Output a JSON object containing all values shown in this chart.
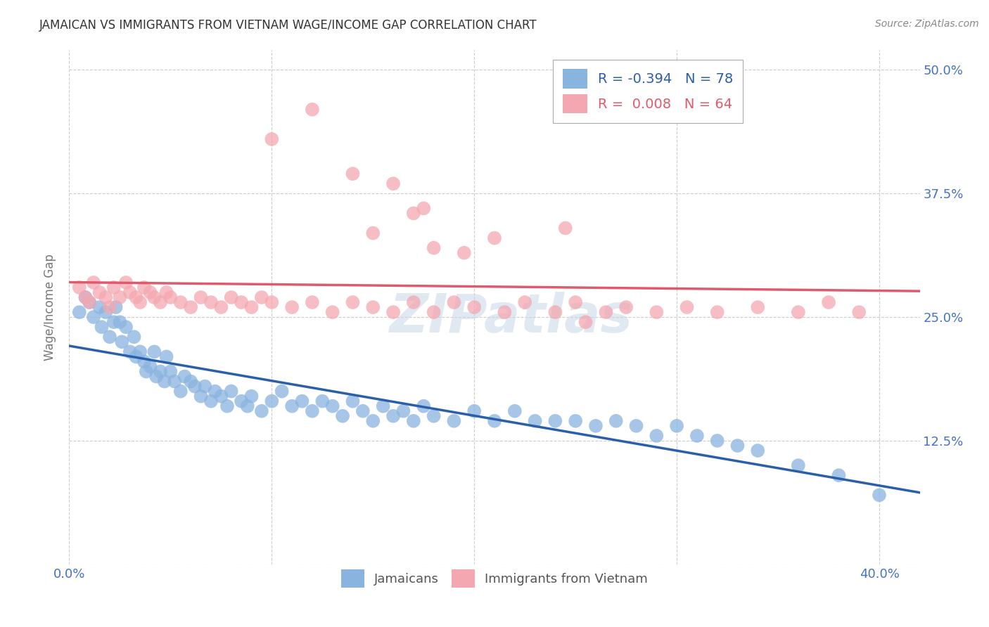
{
  "title": "JAMAICAN VS IMMIGRANTS FROM VIETNAM WAGE/INCOME GAP CORRELATION CHART",
  "source": "Source: ZipAtlas.com",
  "ylabel": "Wage/Income Gap",
  "legend_label1": "Jamaicans",
  "legend_label2": "Immigrants from Vietnam",
  "r1": -0.394,
  "n1": 78,
  "r2": 0.008,
  "n2": 64,
  "color_blue": "#8ab4e0",
  "color_pink": "#f4a7b0",
  "line_blue": "#2a5fac",
  "line_pink": "#e05a6e",
  "background": "#ffffff",
  "grid_color": "#cccccc",
  "title_color": "#333333",
  "axis_tick_color": "#4472c4",
  "ytick_values": [
    0.0,
    0.125,
    0.25,
    0.375,
    0.5
  ],
  "xtick_values": [
    0.0,
    0.1,
    0.2,
    0.3,
    0.4
  ],
  "xlim": [
    0.0,
    0.42
  ],
  "ylim": [
    0.0,
    0.52
  ],
  "blue_x": [
    0.005,
    0.008,
    0.01,
    0.012,
    0.015,
    0.016,
    0.018,
    0.02,
    0.022,
    0.023,
    0.025,
    0.026,
    0.028,
    0.03,
    0.032,
    0.033,
    0.035,
    0.037,
    0.038,
    0.04,
    0.042,
    0.043,
    0.045,
    0.047,
    0.048,
    0.05,
    0.052,
    0.055,
    0.057,
    0.06,
    0.062,
    0.065,
    0.067,
    0.07,
    0.072,
    0.075,
    0.078,
    0.08,
    0.085,
    0.088,
    0.09,
    0.095,
    0.1,
    0.105,
    0.11,
    0.115,
    0.12,
    0.125,
    0.13,
    0.135,
    0.14,
    0.145,
    0.15,
    0.155,
    0.16,
    0.165,
    0.17,
    0.175,
    0.18,
    0.19,
    0.2,
    0.21,
    0.22,
    0.23,
    0.24,
    0.25,
    0.26,
    0.27,
    0.28,
    0.29,
    0.3,
    0.31,
    0.32,
    0.33,
    0.34,
    0.36,
    0.38,
    0.4
  ],
  "blue_y": [
    0.255,
    0.27,
    0.265,
    0.25,
    0.26,
    0.24,
    0.255,
    0.23,
    0.245,
    0.26,
    0.245,
    0.225,
    0.24,
    0.215,
    0.23,
    0.21,
    0.215,
    0.205,
    0.195,
    0.2,
    0.215,
    0.19,
    0.195,
    0.185,
    0.21,
    0.195,
    0.185,
    0.175,
    0.19,
    0.185,
    0.18,
    0.17,
    0.18,
    0.165,
    0.175,
    0.17,
    0.16,
    0.175,
    0.165,
    0.16,
    0.17,
    0.155,
    0.165,
    0.175,
    0.16,
    0.165,
    0.155,
    0.165,
    0.16,
    0.15,
    0.165,
    0.155,
    0.145,
    0.16,
    0.15,
    0.155,
    0.145,
    0.16,
    0.15,
    0.145,
    0.155,
    0.145,
    0.155,
    0.145,
    0.145,
    0.145,
    0.14,
    0.145,
    0.14,
    0.13,
    0.14,
    0.13,
    0.125,
    0.12,
    0.115,
    0.1,
    0.09,
    0.07
  ],
  "pink_x": [
    0.005,
    0.008,
    0.01,
    0.012,
    0.015,
    0.018,
    0.02,
    0.022,
    0.025,
    0.028,
    0.03,
    0.033,
    0.035,
    0.037,
    0.04,
    0.042,
    0.045,
    0.048,
    0.05,
    0.055,
    0.06,
    0.065,
    0.07,
    0.075,
    0.08,
    0.085,
    0.09,
    0.095,
    0.1,
    0.11,
    0.12,
    0.13,
    0.14,
    0.15,
    0.16,
    0.17,
    0.18,
    0.19,
    0.2,
    0.215,
    0.225,
    0.24,
    0.25,
    0.265,
    0.275,
    0.29,
    0.305,
    0.32,
    0.34,
    0.36,
    0.375,
    0.39,
    0.15,
    0.21,
    0.17,
    0.175,
    0.18,
    0.195,
    0.245,
    0.255,
    0.1,
    0.12,
    0.14,
    0.16
  ],
  "pink_y": [
    0.28,
    0.27,
    0.265,
    0.285,
    0.275,
    0.27,
    0.26,
    0.28,
    0.27,
    0.285,
    0.275,
    0.27,
    0.265,
    0.28,
    0.275,
    0.27,
    0.265,
    0.275,
    0.27,
    0.265,
    0.26,
    0.27,
    0.265,
    0.26,
    0.27,
    0.265,
    0.26,
    0.27,
    0.265,
    0.26,
    0.265,
    0.255,
    0.265,
    0.26,
    0.255,
    0.265,
    0.255,
    0.265,
    0.26,
    0.255,
    0.265,
    0.255,
    0.265,
    0.255,
    0.26,
    0.255,
    0.26,
    0.255,
    0.26,
    0.255,
    0.265,
    0.255,
    0.335,
    0.33,
    0.355,
    0.36,
    0.32,
    0.315,
    0.34,
    0.245,
    0.43,
    0.46,
    0.395,
    0.385
  ]
}
